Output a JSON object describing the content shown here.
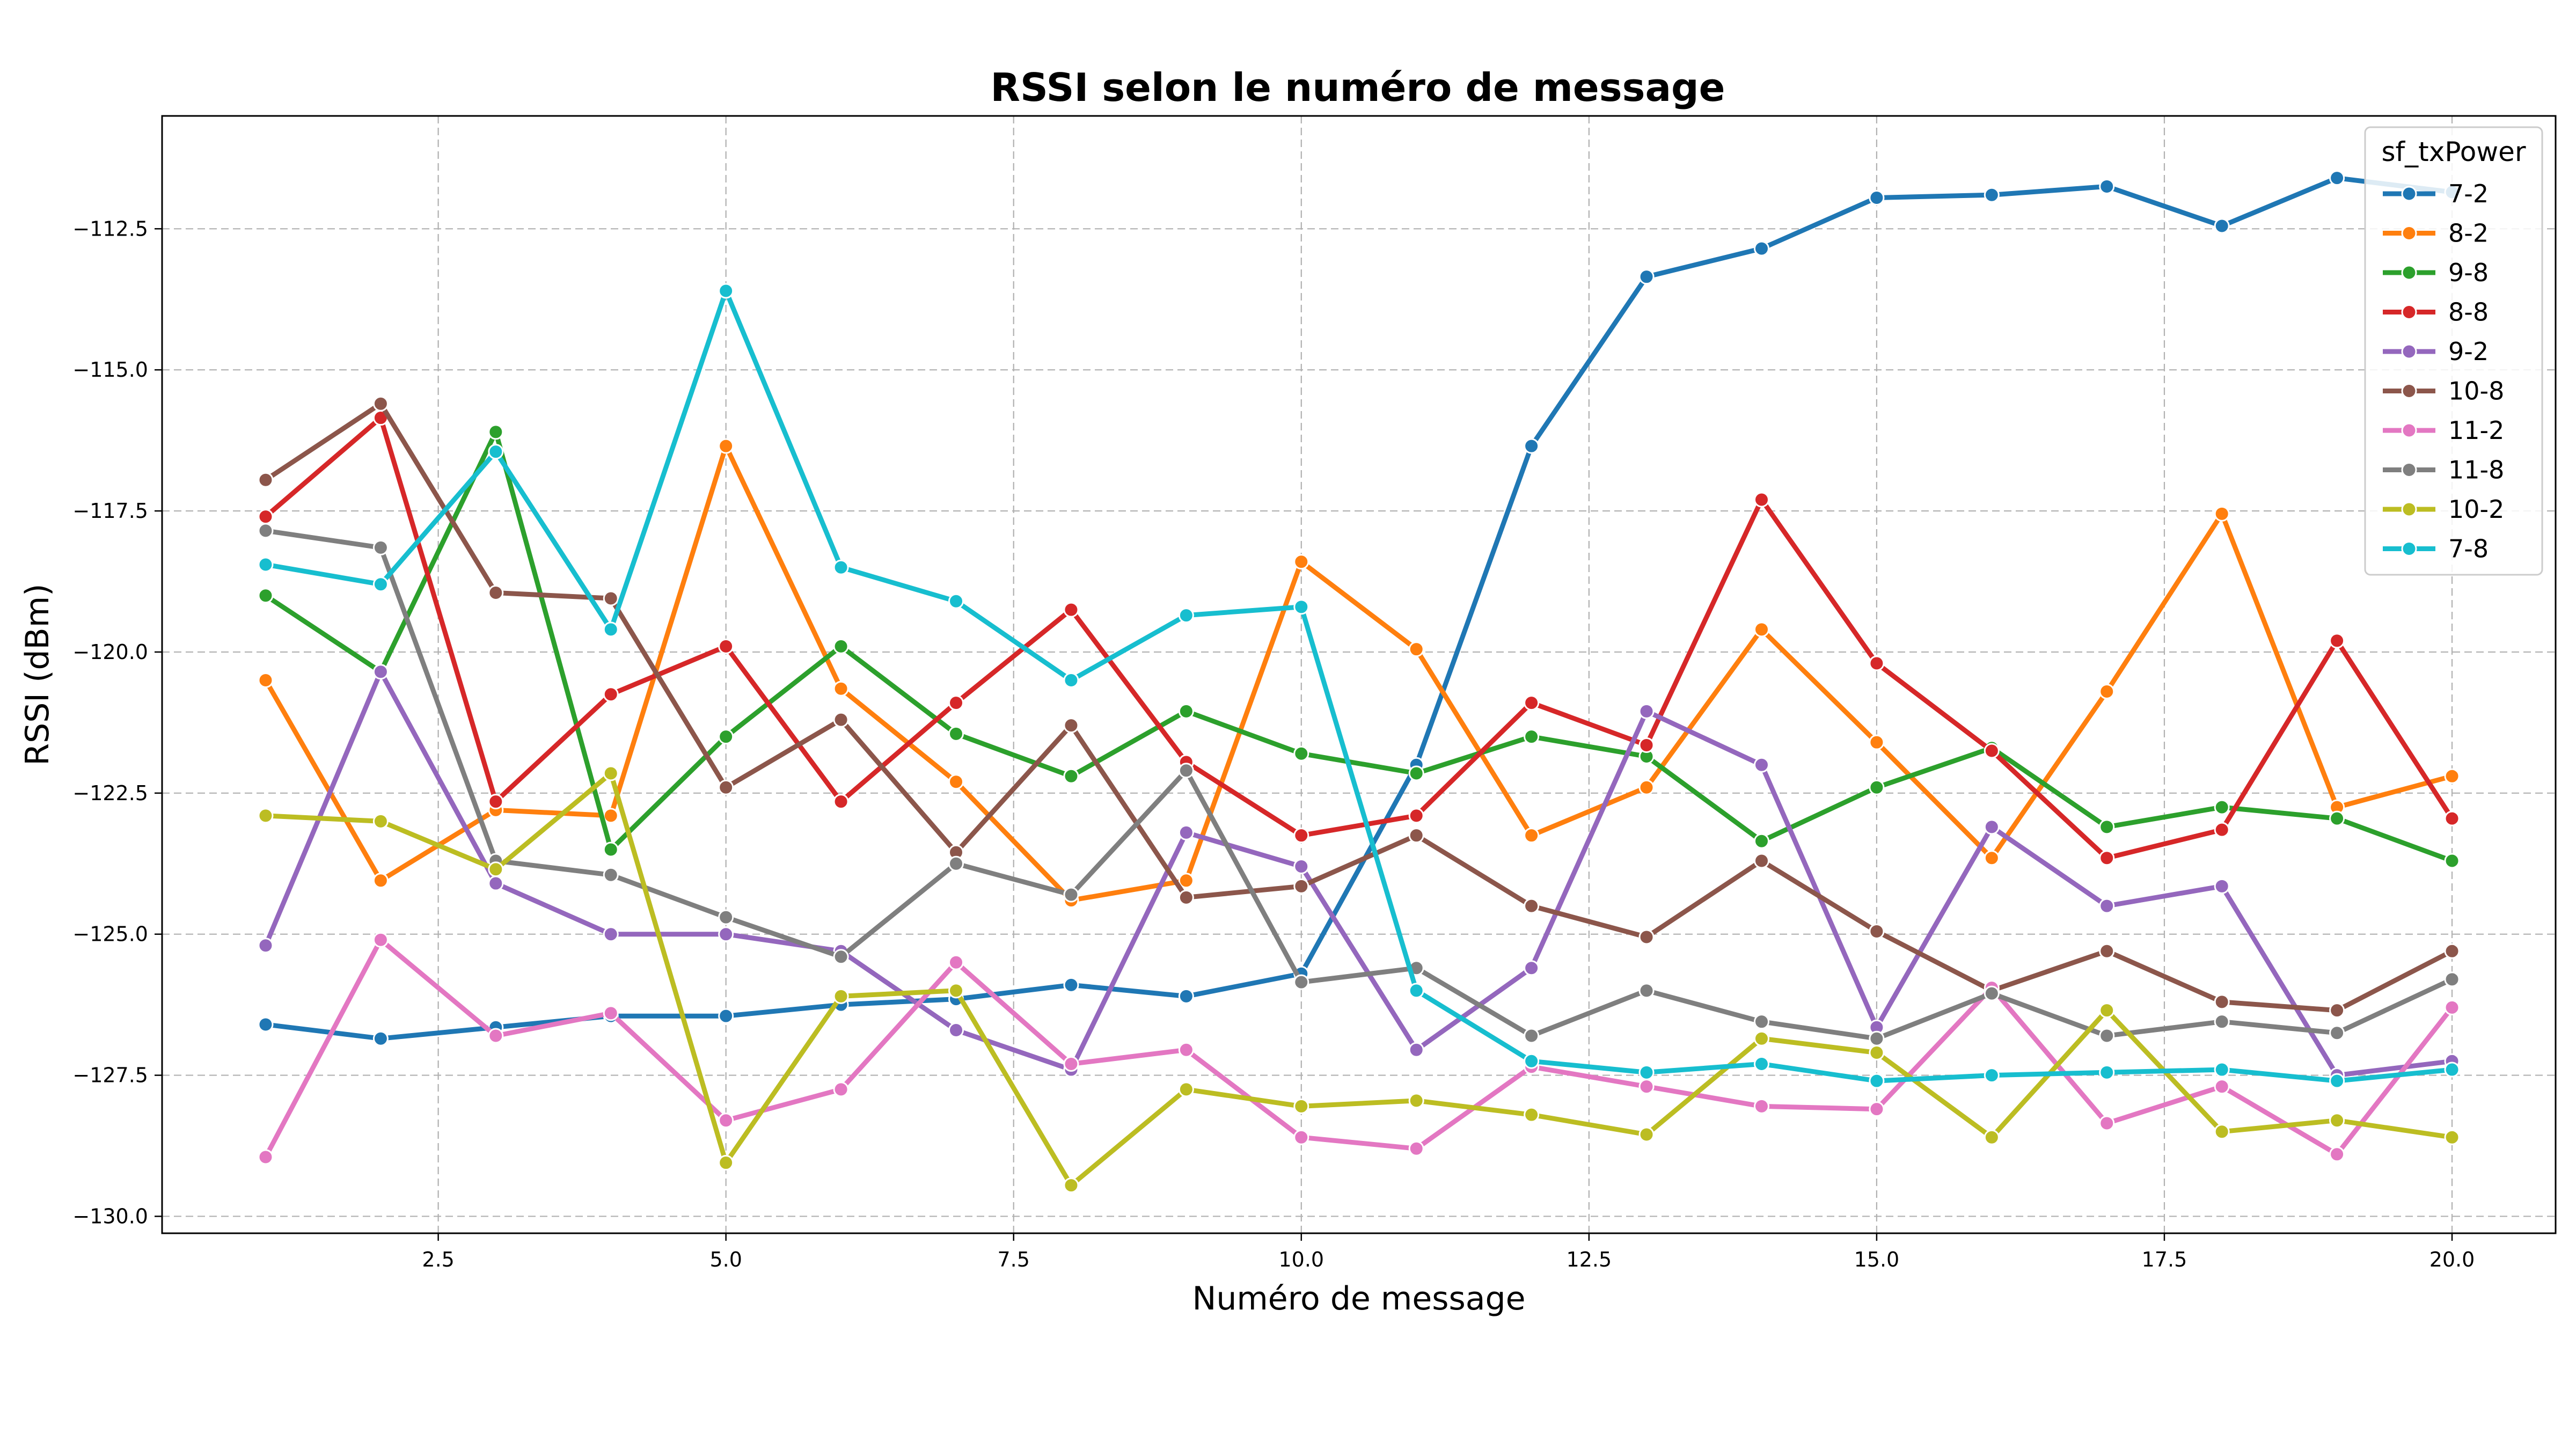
{
  "chart_data": {
    "type": "line",
    "title": "RSSI selon le numéro de message",
    "xlabel": "Numéro de message",
    "ylabel": "RSSI (dBm)",
    "xlim": [
      0.1,
      20.9
    ],
    "ylim": [
      -130.3,
      -110.5
    ],
    "x_ticks": [
      2.5,
      5.0,
      7.5,
      10.0,
      12.5,
      15.0,
      17.5,
      20.0
    ],
    "x_tick_labels": [
      "2.5",
      "5.0",
      "7.5",
      "10.0",
      "12.5",
      "15.0",
      "17.5",
      "20.0"
    ],
    "y_ticks": [
      -130.0,
      -127.5,
      -125.0,
      -122.5,
      -120.0,
      -117.5,
      -115.0,
      -112.5
    ],
    "y_tick_labels": [
      "−130.0",
      "−127.5",
      "−125.0",
      "−122.5",
      "−120.0",
      "−117.5",
      "−115.0",
      "−112.5"
    ],
    "grid": true,
    "legend_title": "sf_txPower",
    "legend_position": "top-right",
    "x": [
      1,
      2,
      3,
      4,
      5,
      6,
      7,
      8,
      9,
      10,
      11,
      12,
      13,
      14,
      15,
      16,
      17,
      18,
      19,
      20
    ],
    "series": [
      {
        "name": "7-2",
        "color": "#1f77b4",
        "values": [
          -126.6,
          -126.85,
          -126.65,
          -126.45,
          -126.45,
          -126.25,
          -126.15,
          -125.9,
          -126.1,
          -125.7,
          -122.0,
          -116.35,
          -113.35,
          -112.85,
          -111.95,
          -111.9,
          -111.75,
          -112.45,
          -111.6,
          -111.85
        ]
      },
      {
        "name": "8-2",
        "color": "#ff7f0e",
        "values": [
          -120.5,
          -124.05,
          -122.8,
          -122.9,
          -116.35,
          -120.65,
          -122.3,
          -124.4,
          -124.05,
          -118.4,
          -119.95,
          -123.25,
          -122.4,
          -119.6,
          -121.6,
          -123.65,
          -120.7,
          -117.55,
          -122.75,
          -122.2
        ]
      },
      {
        "name": "9-8",
        "color": "#2ca02c",
        "values": [
          -119.0,
          -120.35,
          -116.1,
          -123.5,
          -121.5,
          -119.9,
          -121.45,
          -122.2,
          -121.05,
          -121.8,
          -122.15,
          -121.5,
          -121.85,
          -123.35,
          -122.4,
          -121.7,
          -123.1,
          -122.75,
          -122.95,
          -123.7
        ]
      },
      {
        "name": "8-8",
        "color": "#d62728",
        "values": [
          -117.6,
          -115.85,
          -122.65,
          -120.75,
          -119.9,
          -122.65,
          -120.9,
          -119.25,
          -121.95,
          -123.25,
          -122.9,
          -120.9,
          -121.65,
          -117.3,
          -120.2,
          -121.75,
          -123.65,
          -123.15,
          -119.8,
          -122.95
        ]
      },
      {
        "name": "9-2",
        "color": "#9467bd",
        "values": [
          -125.2,
          -120.35,
          -124.1,
          -125.0,
          -125.0,
          -125.3,
          -126.7,
          -127.4,
          -123.2,
          -123.8,
          -127.05,
          -125.6,
          -121.05,
          -122.0,
          -126.65,
          -123.1,
          -124.5,
          -124.15,
          -127.5,
          -127.25
        ]
      },
      {
        "name": "10-8",
        "color": "#8c564b",
        "values": [
          -116.95,
          -115.6,
          -118.95,
          -119.05,
          -122.4,
          -121.2,
          -123.55,
          -121.3,
          -124.35,
          -124.15,
          -123.25,
          -124.5,
          -125.05,
          -123.7,
          -124.95,
          -126.0,
          -125.3,
          -126.2,
          -126.35,
          -125.3
        ]
      },
      {
        "name": "11-2",
        "color": "#e377c2",
        "values": [
          -128.95,
          -125.1,
          -126.8,
          -126.4,
          -128.3,
          -127.75,
          -125.5,
          -127.3,
          -127.05,
          -128.6,
          -128.8,
          -127.35,
          -127.7,
          -128.05,
          -128.1,
          -125.95,
          -128.35,
          -127.7,
          -128.9,
          -126.3
        ]
      },
      {
        "name": "11-8",
        "color": "#7f7f7f",
        "values": [
          -117.85,
          -118.15,
          -123.7,
          -123.95,
          -124.7,
          -125.4,
          -123.75,
          -124.3,
          -122.1,
          -125.85,
          -125.6,
          -126.8,
          -126.0,
          -126.55,
          -126.85,
          -126.05,
          -126.8,
          -126.55,
          -126.75,
          -125.8
        ]
      },
      {
        "name": "10-2",
        "color": "#bcbd22",
        "values": [
          -122.9,
          -123.0,
          -123.85,
          -122.15,
          -129.05,
          -126.1,
          -126.0,
          -129.45,
          -127.75,
          -128.05,
          -127.95,
          -128.2,
          -128.55,
          -126.85,
          -127.1,
          -128.6,
          -126.35,
          -128.5,
          -128.3,
          -128.6
        ]
      },
      {
        "name": "7-8",
        "color": "#17becf",
        "values": [
          -118.45,
          -118.8,
          -116.45,
          -119.6,
          -113.6,
          -118.5,
          -119.1,
          -120.5,
          -119.35,
          -119.2,
          -126.0,
          -127.25,
          -127.45,
          -127.3,
          -127.6,
          -127.5,
          -127.45,
          -127.4,
          -127.6,
          -127.4
        ]
      }
    ]
  }
}
